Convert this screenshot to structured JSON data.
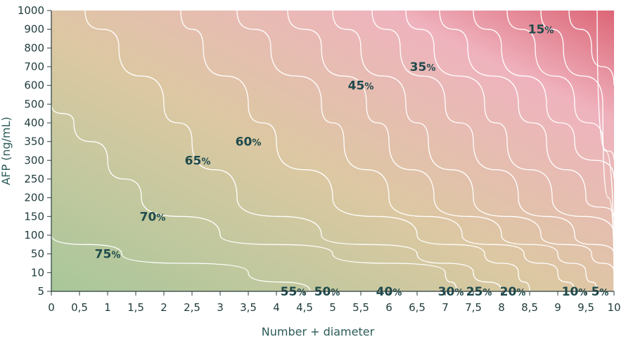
{
  "chart_data": {
    "type": "contour",
    "xlabel": "Number + diameter",
    "ylabel": "AFP (ng/mL)",
    "x_ticks": [
      "0",
      "0,5",
      "1",
      "1,5",
      "2",
      "2,5",
      "3",
      "3,5",
      "4",
      "4,5",
      "5",
      "5,5",
      "6",
      "6,5",
      "7",
      "7,5",
      "8",
      "8,5",
      "9",
      "9,5",
      "10"
    ],
    "y_ticks": [
      "5",
      "10",
      "50",
      "100",
      "150",
      "200",
      "250",
      "300",
      "350",
      "400",
      "500",
      "600",
      "700",
      "800",
      "900",
      "1000"
    ],
    "xlim": [
      0,
      10
    ],
    "y_scale": "categorical-nonlinear",
    "grid": false,
    "colors": {
      "low": "#a8c79a",
      "mid": "#dcc8a2",
      "high_pink": "#efb3be",
      "top": "#dc6677",
      "contour_line": "#ffffff",
      "label_text": "#1f4a4c"
    },
    "contours": [
      {
        "label": "75",
        "unit": "%",
        "points": [
          [
            0,
            "100"
          ],
          [
            1.25,
            "50"
          ],
          [
            3.5,
            "10"
          ],
          [
            4.6,
            "5"
          ]
        ]
      },
      {
        "label": "70",
        "unit": "%",
        "points": [
          [
            0,
            "500"
          ],
          [
            0.4,
            "400"
          ],
          [
            1,
            "300"
          ],
          [
            1.6,
            "200"
          ],
          [
            3,
            "100"
          ],
          [
            5,
            "50"
          ],
          [
            7,
            "10"
          ],
          [
            7.2,
            "5"
          ]
        ]
      },
      {
        "label": "65",
        "unit": "%",
        "points": [
          [
            0.6,
            "1000"
          ],
          [
            1.2,
            "800"
          ],
          [
            2,
            "500"
          ],
          [
            2.5,
            "350"
          ],
          [
            3.3,
            "200"
          ],
          [
            4.8,
            "100"
          ],
          [
            6.5,
            "50"
          ],
          [
            7.5,
            "10"
          ],
          [
            8,
            "5"
          ]
        ]
      },
      {
        "label": "60",
        "unit": "%",
        "points": [
          [
            2.3,
            "1000"
          ],
          [
            2.7,
            "800"
          ],
          [
            3.5,
            "500"
          ],
          [
            4,
            "350"
          ],
          [
            5,
            "200"
          ],
          [
            6.5,
            "100"
          ],
          [
            7.7,
            "50"
          ],
          [
            8.3,
            "10"
          ],
          [
            8.5,
            "5"
          ]
        ]
      },
      {
        "label": "55",
        "unit": "%",
        "points": [
          [
            3.3,
            "1000"
          ],
          [
            3.9,
            "800"
          ],
          [
            4.8,
            "500"
          ],
          [
            5.2,
            "350"
          ],
          [
            6,
            "200"
          ],
          [
            7.3,
            "100"
          ],
          [
            8.4,
            "50"
          ],
          [
            9,
            "10"
          ],
          [
            9.3,
            "5"
          ]
        ]
      },
      {
        "label": "50",
        "unit": "%",
        "points": [
          [
            4.2,
            "1000"
          ],
          [
            4.8,
            "800"
          ],
          [
            5.6,
            "500"
          ],
          [
            6,
            "350"
          ],
          [
            6.8,
            "200"
          ],
          [
            8,
            "100"
          ],
          [
            9,
            "50"
          ],
          [
            9.5,
            "10"
          ],
          [
            9.7,
            "5"
          ]
        ]
      },
      {
        "label": "45",
        "unit": "%",
        "points": [
          [
            5,
            "1000"
          ],
          [
            5.5,
            "800"
          ],
          [
            6.3,
            "500"
          ],
          [
            6.7,
            "350"
          ],
          [
            7.5,
            "200"
          ],
          [
            8.7,
            "100"
          ],
          [
            9.6,
            "50"
          ],
          [
            10,
            "10"
          ]
        ]
      },
      {
        "label": "40",
        "unit": "%",
        "points": [
          [
            5.7,
            "1000"
          ],
          [
            6.2,
            "800"
          ],
          [
            7,
            "500"
          ],
          [
            7.5,
            "350"
          ],
          [
            8.3,
            "200"
          ],
          [
            9.3,
            "100"
          ],
          [
            10,
            "50"
          ]
        ]
      },
      {
        "label": "35",
        "unit": "%",
        "points": [
          [
            6.3,
            "1000"
          ],
          [
            6.8,
            "800"
          ],
          [
            7.7,
            "500"
          ],
          [
            8.1,
            "350"
          ],
          [
            8.9,
            "200"
          ],
          [
            10,
            "100"
          ]
        ]
      },
      {
        "label": "30",
        "unit": "%",
        "points": [
          [
            6.9,
            "1000"
          ],
          [
            7.4,
            "800"
          ],
          [
            8.3,
            "500"
          ],
          [
            8.8,
            "350"
          ],
          [
            9.5,
            "200"
          ],
          [
            10,
            "150"
          ]
        ]
      },
      {
        "label": "25",
        "unit": "%",
        "points": [
          [
            7.5,
            "1000"
          ],
          [
            8,
            "800"
          ],
          [
            8.8,
            "500"
          ],
          [
            9.3,
            "350"
          ],
          [
            10,
            "250"
          ]
        ]
      },
      {
        "label": "20",
        "unit": "%",
        "points": [
          [
            8.1,
            "1000"
          ],
          [
            8.6,
            "800"
          ],
          [
            9.3,
            "500"
          ],
          [
            9.8,
            "350"
          ],
          [
            10,
            "300"
          ]
        ]
      },
      {
        "label": "15",
        "unit": "%",
        "points": [
          [
            8.7,
            "1000"
          ],
          [
            9.1,
            "800"
          ],
          [
            9.8,
            "500"
          ],
          [
            10,
            "450"
          ]
        ]
      },
      {
        "label": "10",
        "unit": "%",
        "points": [
          [
            9.2,
            "1000"
          ],
          [
            9.6,
            "800"
          ],
          [
            10,
            "600"
          ]
        ]
      },
      {
        "label": "5",
        "unit": "%",
        "points": [
          [
            9.7,
            "1000"
          ],
          [
            10,
            "850"
          ]
        ]
      }
    ],
    "labels": [
      {
        "text": "75",
        "unit": "%",
        "x": 1.0,
        "y": "50"
      },
      {
        "text": "70",
        "unit": "%",
        "x": 1.8,
        "y": "150"
      },
      {
        "text": "65",
        "unit": "%",
        "x": 2.6,
        "y": "300"
      },
      {
        "text": "60",
        "unit": "%",
        "x": 3.5,
        "y": "350"
      },
      {
        "text": "55",
        "unit": "%",
        "x": 4.3,
        "y": "450"
      },
      {
        "text": "50",
        "unit": "%",
        "x": 4.9,
        "y": "550"
      },
      {
        "text": "45",
        "unit": "%",
        "x": 5.5,
        "y": "600"
      },
      {
        "text": "40",
        "unit": "%",
        "x": 6.0,
        "y": "650"
      },
      {
        "text": "35",
        "unit": "%",
        "x": 6.6,
        "y": "700"
      },
      {
        "text": "30",
        "unit": "%",
        "x": 7.1,
        "y": "750"
      },
      {
        "text": "25",
        "unit": "%",
        "x": 7.6,
        "y": "780"
      },
      {
        "text": "20",
        "unit": "%",
        "x": 8.2,
        "y": "850"
      },
      {
        "text": "15",
        "unit": "%",
        "x": 8.7,
        "y": "900"
      },
      {
        "text": "10",
        "unit": "%",
        "x": 9.3,
        "y": "930"
      },
      {
        "text": "5",
        "unit": "%",
        "x": 9.75,
        "y": "950"
      }
    ]
  }
}
